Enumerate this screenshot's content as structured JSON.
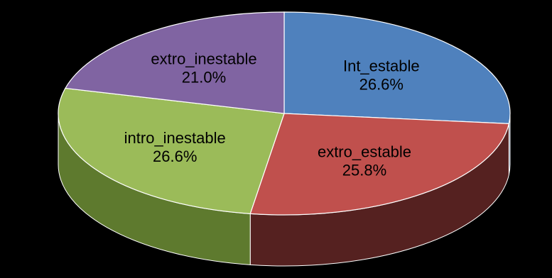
{
  "chart_data": {
    "type": "pie",
    "style": "3d",
    "slices": [
      {
        "label": "Int_estable",
        "value": 26.6,
        "value_label": "26.6%",
        "color": "#4F81BD",
        "side_color": "#2E4C70"
      },
      {
        "label": "extro_estable",
        "value": 25.8,
        "value_label": "25.8%",
        "color": "#C0504D",
        "side_color": "#552120"
      },
      {
        "label": "intro_inestable",
        "value": 26.6,
        "value_label": "26.6%",
        "color": "#9BBB59",
        "side_color": "#5E7A2E"
      },
      {
        "label": "extro_inestable",
        "value": 21.0,
        "value_label": "21.0%",
        "color": "#8064A2",
        "side_color": "#4B3A60"
      }
    ],
    "legend": "none",
    "background": "#000000"
  }
}
